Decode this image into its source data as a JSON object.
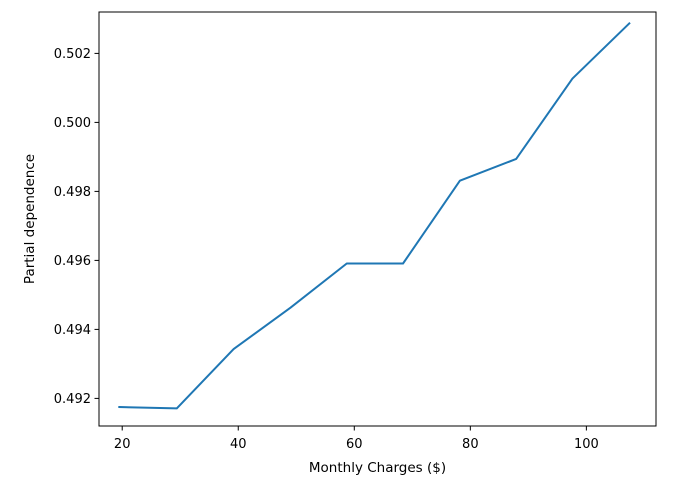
{
  "chart_data": {
    "type": "line",
    "xlabel": "Monthly Charges ($)",
    "ylabel": "Partial dependence",
    "xlim": [
      16.0,
      112.0
    ],
    "ylim": [
      0.4912,
      0.5032
    ],
    "x_ticks": [
      20,
      40,
      60,
      80,
      100
    ],
    "x_tick_labels": [
      "20",
      "40",
      "60",
      "80",
      "100"
    ],
    "y_ticks": [
      0.492,
      0.494,
      0.496,
      0.498,
      0.5,
      0.502
    ],
    "y_tick_labels": [
      "0.492",
      "0.494",
      "0.496",
      "0.498",
      "0.500",
      "0.502"
    ],
    "grid": false,
    "series": [
      {
        "color": "#1f77b4",
        "x": [
          19.5,
          29.4,
          39.2,
          49.0,
          58.7,
          68.4,
          78.2,
          87.9,
          97.6,
          107.4
        ],
        "y": [
          0.49175,
          0.49171,
          0.49343,
          0.49463,
          0.49591,
          0.49591,
          0.49831,
          0.49894,
          0.50127,
          0.50287
        ]
      }
    ]
  }
}
